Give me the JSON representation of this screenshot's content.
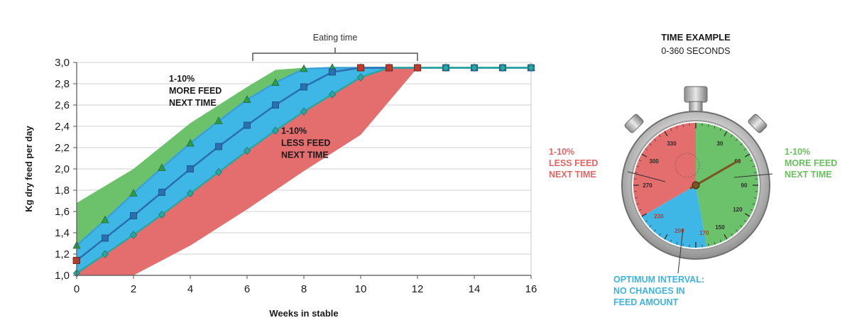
{
  "chart_data": {
    "type": "line",
    "xlabel": "Weeks in stable",
    "ylabel": "Kg dry feed per day",
    "xlim": [
      0,
      16
    ],
    "ylim": [
      1.0,
      3.0
    ],
    "x_ticks": [
      "0",
      "2",
      "4",
      "6",
      "8",
      "10",
      "12",
      "14",
      "16"
    ],
    "y_ticks": [
      "1,0",
      "1,2",
      "1,4",
      "1,6",
      "1,8",
      "2,0",
      "2,2",
      "2,4",
      "2,6",
      "2,8",
      "3,0"
    ],
    "grid": true,
    "series": [
      {
        "marker": "triangle",
        "color": "#3aa0d8",
        "x": [
          0,
          1,
          2,
          3,
          4,
          5,
          6,
          7,
          8,
          9,
          10,
          11,
          12,
          13,
          14,
          15,
          16
        ],
        "y": [
          1.28,
          1.52,
          1.77,
          2.01,
          2.24,
          2.45,
          2.65,
          2.81,
          2.94,
          2.95,
          2.95,
          2.95,
          2.95,
          2.95,
          2.95,
          2.95,
          2.95
        ]
      },
      {
        "marker": "square",
        "color": "#2a6fb0",
        "x": [
          0,
          1,
          2,
          3,
          4,
          5,
          6,
          7,
          8,
          9,
          10,
          11,
          12,
          13,
          14,
          15,
          16
        ],
        "y": [
          1.14,
          1.35,
          1.56,
          1.78,
          2.0,
          2.21,
          2.41,
          2.6,
          2.77,
          2.91,
          2.95,
          2.95,
          2.95,
          2.95,
          2.95,
          2.95,
          2.95
        ]
      },
      {
        "marker": "diamond",
        "color": "#2aa7a0",
        "x": [
          0,
          1,
          2,
          3,
          4,
          5,
          6,
          7,
          8,
          9,
          10,
          11,
          12,
          13,
          14,
          15,
          16
        ],
        "y": [
          1.02,
          1.2,
          1.38,
          1.57,
          1.77,
          1.97,
          2.17,
          2.36,
          2.54,
          2.7,
          2.86,
          2.95,
          2.95,
          2.95,
          2.95,
          2.95,
          2.95
        ]
      }
    ],
    "bands": [
      {
        "color": "#6cc26a",
        "upper": [
          [
            0,
            1.68
          ],
          [
            2,
            2.0
          ],
          [
            4,
            2.43
          ],
          [
            6,
            2.77
          ],
          [
            7,
            2.93
          ],
          [
            8,
            2.95
          ]
        ],
        "lower_series": 0
      },
      {
        "color": "#3fb7e6",
        "upper_series": 0,
        "lower_series": 2
      },
      {
        "color": "#e46e6e",
        "upper_series": 2,
        "lower": [
          [
            0,
            1.0
          ],
          [
            2,
            1.0
          ],
          [
            4,
            1.28
          ],
          [
            6,
            1.62
          ],
          [
            8,
            1.98
          ],
          [
            10,
            2.32
          ],
          [
            12,
            2.95
          ]
        ]
      }
    ],
    "start_markers": [
      {
        "x": 0,
        "y": 1.14,
        "color": "#c0392b"
      }
    ],
    "end_markers": [
      {
        "x": 10,
        "y": 2.95,
        "color": "#c0392b"
      },
      {
        "x": 11,
        "y": 2.95,
        "color": "#c0392b"
      },
      {
        "x": 12,
        "y": 2.95,
        "color": "#c0392b"
      }
    ],
    "bracket": {
      "label": "Eating time",
      "x_from": 6.2,
      "x_to": 12
    },
    "annotations": [
      {
        "lines": [
          "1-10%",
          "MORE FEED",
          "NEXT TIME"
        ],
        "x": 3.25,
        "y": 2.82
      },
      {
        "lines": [
          "1-10%",
          "LESS FEED",
          "NEXT TIME"
        ],
        "x": 7.2,
        "y": 2.33
      }
    ]
  },
  "stopwatch": {
    "title": "TIME EXAMPLE",
    "subtitle": "0-360 SECONDS",
    "dial_labels": [
      "30",
      "60",
      "90",
      "120",
      "150",
      "170",
      "200",
      "230",
      "270",
      "300",
      "330"
    ],
    "zones": [
      {
        "from": 0,
        "to": 170,
        "color": "#6cc26a"
      },
      {
        "from": 170,
        "to": 240,
        "color": "#3fb7e6"
      },
      {
        "from": 240,
        "to": 360,
        "color": "#e46e6e"
      }
    ],
    "hand_angle": 60,
    "left_label": [
      "1-10%",
      "LESS FEED",
      "NEXT TIME"
    ],
    "right_label": [
      "1-10%",
      "MORE FEED",
      "NEXT TIME"
    ],
    "bottom_label": [
      "OPTIMUM INTERVAL:",
      "NO CHANGES IN",
      "FEED AMOUNT"
    ],
    "colors": {
      "red": "#e06666",
      "green": "#6abf5e",
      "blue": "#3fb3e0"
    }
  }
}
